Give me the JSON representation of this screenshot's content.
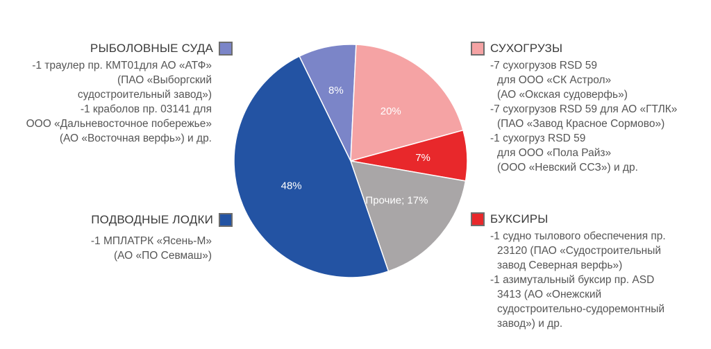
{
  "chart_data": {
    "type": "pie",
    "slices": [
      {
        "label": "8%",
        "value": 8,
        "color": "#7b85c8",
        "text_color": "#ffffff"
      },
      {
        "label": "20%",
        "value": 20,
        "color": "#f5a3a4",
        "text_color": "#ffffff"
      },
      {
        "label": "7%",
        "value": 7,
        "color": "#e8282b",
        "text_color": "#ffffff"
      },
      {
        "label": "Прочие; 17%",
        "value": 17,
        "color": "#a9a6a7",
        "text_color": "#ffffff"
      },
      {
        "label": "48%",
        "value": 48,
        "color": "#2353a3",
        "text_color": "#ffffff"
      }
    ]
  },
  "legends": {
    "fishing": {
      "title": "РЫБОЛОВНЫЕ СУДА",
      "color": "#7b85c8",
      "lines": [
        "-1 траулер пр. КМТ01для АО «АТФ»",
        "(ПАО «Выборгский",
        "судостроительный завод»)",
        "-1 краболов пр. 03141 для",
        "ООО «Дальневосточное побережье»",
        "(АО «Восточная верфь») и др."
      ]
    },
    "submarines": {
      "title": "ПОДВОДНЫЕ ЛОДКИ",
      "color": "#2353a3",
      "lines": [
        "-1 МПЛАТРК «Ясень-М»",
        "(АО «ПО Севмаш»)"
      ]
    },
    "cargo": {
      "title": "СУХОГРУЗЫ",
      "color": "#f5a3a4",
      "lines": [
        "-7 сухогрузов RSD 59",
        "для ООО «СК Астрол»",
        "(АО «Окская судоверфь»)",
        "-7 сухогрузов RSD 59 для АО «ГТЛК»",
        "(ПАО «Завод Красное Сормово»)",
        "-1 сухогруз RSD 59",
        "для ООО «Пола Райз»",
        "(ООО «Невский ССЗ») и др."
      ]
    },
    "tugs": {
      "title": "БУКСИРЫ",
      "color": "#e8282b",
      "lines": [
        "-1 судно тылового обеспечения пр.",
        "23120 (ПАО «Судостроительный",
        "завод Северная верфь»)",
        "-1 азимутальный буксир пр. ASD",
        "3413 (АО «Онежский",
        "судостроительно-судоремонтный",
        "завод») и др."
      ]
    }
  }
}
